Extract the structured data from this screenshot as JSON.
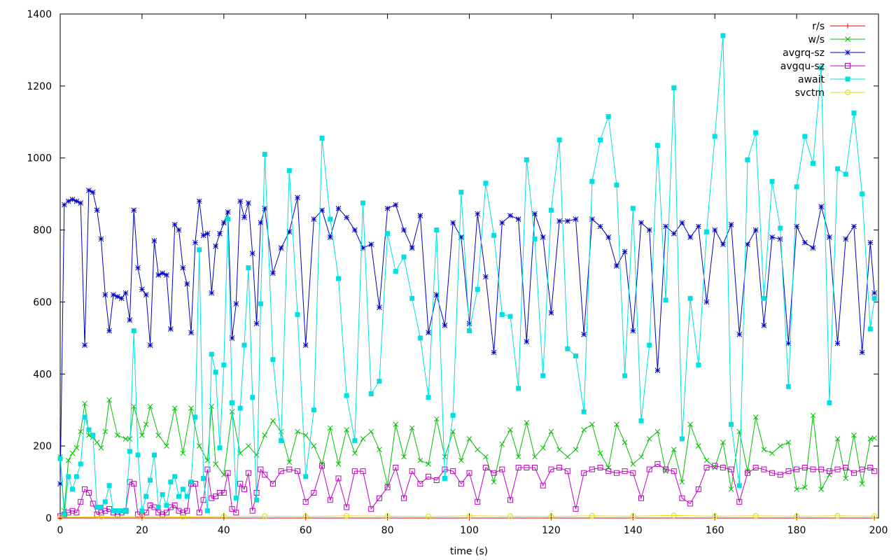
{
  "chart_data": {
    "type": "line",
    "xlabel": "time (s)",
    "ylabel": "",
    "xlim": [
      0,
      200
    ],
    "ylim": [
      0,
      1400
    ],
    "xticks": [
      0,
      20,
      40,
      60,
      80,
      100,
      120,
      140,
      160,
      180,
      200
    ],
    "yticks": [
      0,
      200,
      400,
      600,
      800,
      1000,
      1200,
      1400
    ],
    "legend_position": "top-right",
    "grid": false,
    "series": [
      {
        "name": "r/s",
        "color": "#e00000",
        "marker": "plus",
        "x": [
          0,
          20,
          40,
          60,
          80,
          100,
          120,
          140,
          160,
          180,
          199
        ],
        "y": [
          0,
          0,
          0,
          0,
          0,
          0,
          0,
          0,
          0,
          0,
          0
        ]
      },
      {
        "name": "w/s",
        "color": "#00c000",
        "marker": "cross",
        "x": [
          0,
          1,
          2,
          3,
          4,
          5,
          6,
          7,
          8,
          9,
          10,
          11,
          12,
          14,
          16,
          17,
          18,
          20,
          21,
          22,
          24,
          26,
          28,
          30,
          32,
          34,
          36,
          37,
          38,
          40,
          42,
          44,
          46,
          48,
          50,
          52,
          54,
          56,
          58,
          60,
          62,
          64,
          66,
          68,
          70,
          72,
          74,
          76,
          78,
          80,
          82,
          84,
          86,
          88,
          90,
          92,
          94,
          96,
          98,
          100,
          102,
          104,
          106,
          108,
          110,
          112,
          114,
          116,
          118,
          120,
          122,
          124,
          126,
          128,
          130,
          132,
          134,
          136,
          138,
          140,
          142,
          144,
          146,
          148,
          150,
          152,
          154,
          156,
          158,
          160,
          162,
          164,
          166,
          168,
          170,
          172,
          174,
          176,
          178,
          180,
          182,
          184,
          186,
          188,
          190,
          192,
          194,
          196,
          198,
          199
        ],
        "y": [
          170,
          20,
          160,
          180,
          195,
          240,
          318,
          230,
          225,
          210,
          195,
          240,
          328,
          230,
          220,
          220,
          310,
          230,
          260,
          310,
          230,
          200,
          305,
          180,
          305,
          200,
          160,
          310,
          150,
          120,
          295,
          180,
          200,
          175,
          230,
          270,
          240,
          155,
          240,
          230,
          200,
          150,
          250,
          150,
          245,
          180,
          220,
          240,
          190,
          90,
          260,
          170,
          250,
          160,
          150,
          275,
          170,
          240,
          160,
          220,
          190,
          170,
          100,
          205,
          245,
          170,
          265,
          170,
          195,
          240,
          190,
          170,
          190,
          245,
          260,
          180,
          140,
          260,
          210,
          150,
          170,
          220,
          240,
          130,
          190,
          100,
          260,
          200,
          160,
          140,
          210,
          80,
          240,
          130,
          280,
          190,
          180,
          200,
          210,
          80,
          85,
          285,
          80,
          120,
          220,
          110,
          230,
          95,
          220,
          222
        ]
      },
      {
        "name": "avgrq-sz",
        "color": "#0000c0",
        "marker": "star",
        "x": [
          0,
          1,
          2,
          3,
          4,
          5,
          6,
          7,
          8,
          9,
          10,
          11,
          12,
          13,
          14,
          15,
          16,
          17,
          18,
          19,
          20,
          21,
          22,
          23,
          24,
          25,
          26,
          27,
          28,
          29,
          30,
          31,
          32,
          33,
          34,
          35,
          36,
          37,
          38,
          39,
          40,
          41,
          42,
          43,
          44,
          45,
          46,
          47,
          48,
          49,
          50,
          52,
          54,
          56,
          58,
          60,
          62,
          64,
          66,
          68,
          70,
          72,
          74,
          76,
          78,
          80,
          82,
          84,
          86,
          88,
          90,
          92,
          94,
          96,
          98,
          100,
          102,
          104,
          106,
          108,
          110,
          112,
          114,
          116,
          118,
          120,
          122,
          124,
          126,
          128,
          130,
          132,
          134,
          136,
          138,
          140,
          142,
          144,
          146,
          148,
          150,
          152,
          154,
          156,
          158,
          160,
          162,
          164,
          166,
          168,
          170,
          172,
          174,
          176,
          178,
          180,
          182,
          184,
          186,
          188,
          190,
          192,
          194,
          196,
          198,
          199
        ],
        "y": [
          95,
          870,
          880,
          885,
          880,
          875,
          480,
          910,
          905,
          855,
          775,
          620,
          520,
          620,
          615,
          610,
          625,
          550,
          855,
          695,
          635,
          620,
          480,
          770,
          675,
          680,
          675,
          525,
          815,
          800,
          695,
          650,
          515,
          765,
          880,
          785,
          790,
          625,
          755,
          790,
          820,
          850,
          500,
          595,
          880,
          835,
          875,
          735,
          540,
          820,
          860,
          680,
          750,
          795,
          890,
          480,
          830,
          855,
          780,
          860,
          835,
          800,
          750,
          760,
          585,
          860,
          870,
          800,
          750,
          840,
          515,
          620,
          535,
          820,
          780,
          540,
          845,
          670,
          460,
          820,
          840,
          830,
          490,
          845,
          780,
          570,
          825,
          825,
          830,
          510,
          830,
          810,
          780,
          700,
          740,
          520,
          820,
          800,
          410,
          810,
          790,
          820,
          780,
          810,
          600,
          800,
          760,
          815,
          510,
          760,
          800,
          535,
          780,
          775,
          485,
          810,
          765,
          750,
          865,
          780,
          485,
          775,
          810,
          460,
          765,
          625
        ]
      },
      {
        "name": "avgqu-sz",
        "color": "#c000c0",
        "marker": "square",
        "x": [
          0,
          1,
          2,
          3,
          4,
          5,
          6,
          7,
          8,
          9,
          10,
          11,
          12,
          13,
          14,
          15,
          16,
          17,
          18,
          19,
          20,
          21,
          22,
          23,
          24,
          25,
          26,
          27,
          28,
          29,
          30,
          31,
          32,
          33,
          34,
          35,
          36,
          37,
          38,
          39,
          40,
          41,
          42,
          43,
          44,
          45,
          46,
          47,
          48,
          49,
          50,
          52,
          54,
          56,
          58,
          60,
          62,
          64,
          66,
          68,
          70,
          72,
          74,
          76,
          78,
          80,
          82,
          84,
          86,
          88,
          90,
          92,
          94,
          96,
          98,
          100,
          102,
          104,
          106,
          108,
          110,
          112,
          114,
          116,
          118,
          120,
          122,
          124,
          126,
          128,
          130,
          132,
          134,
          136,
          138,
          140,
          142,
          144,
          146,
          148,
          150,
          152,
          154,
          156,
          158,
          160,
          162,
          164,
          166,
          168,
          170,
          172,
          174,
          176,
          178,
          180,
          182,
          184,
          186,
          188,
          190,
          192,
          194,
          196,
          198,
          199
        ],
        "y": [
          5,
          10,
          15,
          20,
          15,
          45,
          80,
          70,
          40,
          10,
          15,
          20,
          25,
          15,
          10,
          15,
          20,
          100,
          95,
          10,
          10,
          15,
          35,
          30,
          15,
          10,
          15,
          30,
          35,
          20,
          15,
          20,
          95,
          95,
          15,
          50,
          135,
          55,
          60,
          70,
          70,
          125,
          25,
          15,
          95,
          80,
          125,
          20,
          70,
          135,
          120,
          95,
          130,
          135,
          130,
          45,
          70,
          145,
          50,
          110,
          30,
          130,
          130,
          25,
          55,
          85,
          140,
          55,
          130,
          95,
          115,
          105,
          135,
          130,
          95,
          125,
          45,
          140,
          125,
          135,
          50,
          140,
          140,
          140,
          90,
          135,
          140,
          130,
          25,
          125,
          135,
          140,
          130,
          125,
          130,
          125,
          55,
          135,
          150,
          135,
          130,
          55,
          40,
          80,
          140,
          145,
          140,
          135,
          45,
          125,
          140,
          135,
          125,
          120,
          130,
          135,
          140,
          135,
          135,
          130,
          135,
          140,
          125,
          135,
          140,
          130
        ]
      },
      {
        "name": "await",
        "color": "#00e0e0",
        "marker": "filled-square",
        "x": [
          0,
          1,
          2,
          3,
          4,
          5,
          6,
          7,
          8,
          9,
          10,
          11,
          12,
          13,
          14,
          15,
          16,
          17,
          18,
          19,
          20,
          21,
          22,
          23,
          24,
          25,
          26,
          27,
          28,
          29,
          30,
          31,
          32,
          33,
          34,
          35,
          36,
          37,
          38,
          39,
          40,
          41,
          42,
          43,
          44,
          45,
          46,
          47,
          48,
          49,
          50,
          52,
          54,
          56,
          58,
          60,
          62,
          64,
          66,
          68,
          70,
          72,
          74,
          76,
          78,
          80,
          82,
          84,
          86,
          88,
          90,
          92,
          94,
          96,
          98,
          100,
          102,
          104,
          106,
          108,
          110,
          112,
          114,
          116,
          118,
          120,
          122,
          124,
          126,
          128,
          130,
          132,
          134,
          136,
          138,
          140,
          142,
          144,
          146,
          148,
          150,
          152,
          154,
          156,
          158,
          160,
          162,
          164,
          166,
          168,
          170,
          172,
          174,
          176,
          178,
          180,
          182,
          184,
          186,
          188,
          190,
          192,
          194,
          196,
          198,
          199
        ],
        "y": [
          165,
          10,
          115,
          80,
          115,
          150,
          280,
          245,
          230,
          30,
          30,
          45,
          90,
          20,
          20,
          20,
          20,
          185,
          520,
          175,
          20,
          60,
          105,
          175,
          30,
          65,
          35,
          100,
          115,
          60,
          80,
          60,
          100,
          280,
          745,
          110,
          20,
          455,
          405,
          195,
          425,
          830,
          320,
          55,
          305,
          480,
          695,
          335,
          50,
          595,
          1010,
          440,
          215,
          965,
          565,
          115,
          300,
          1055,
          830,
          665,
          340,
          215,
          875,
          345,
          380,
          790,
          685,
          725,
          610,
          500,
          335,
          800,
          110,
          285,
          905,
          520,
          635,
          930,
          785,
          565,
          560,
          360,
          995,
          775,
          395,
          855,
          1050,
          470,
          450,
          295,
          935,
          1050,
          1115,
          925,
          395,
          860,
          270,
          480,
          1035,
          605,
          1195,
          220,
          610,
          425,
          795,
          1060,
          1340,
          260,
          90,
          995,
          1070,
          610,
          935,
          805,
          365,
          920,
          1060,
          985,
          1250,
          320,
          970,
          955,
          1125,
          900,
          525,
          610
        ]
      },
      {
        "name": "svctm",
        "color": "#e0e000",
        "marker": "circle",
        "x": [
          0,
          10,
          20,
          30,
          40,
          50,
          60,
          70,
          80,
          90,
          100,
          110,
          120,
          130,
          140,
          150,
          160,
          170,
          180,
          190,
          199
        ],
        "y": [
          2,
          3,
          4,
          3,
          4,
          5,
          4,
          6,
          5,
          4,
          6,
          5,
          4,
          6,
          5,
          7,
          5,
          6,
          5,
          6,
          5
        ]
      }
    ]
  }
}
